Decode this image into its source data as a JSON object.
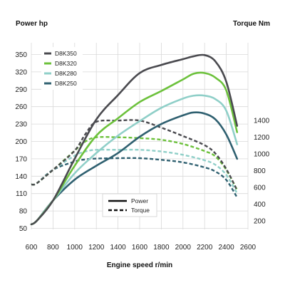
{
  "chart_data": {
    "type": "line",
    "xlabel": "Engine speed r/min",
    "ylabel_left": "Power hp",
    "ylabel_right": "Torque Nm",
    "xlim": [
      600,
      2600
    ],
    "x_ticks": [
      600,
      800,
      1000,
      1200,
      1400,
      1600,
      1800,
      2000,
      2200,
      2400,
      2600
    ],
    "ylim_left": [
      30,
      370
    ],
    "y_ticks_left": [
      50,
      80,
      110,
      140,
      170,
      200,
      230,
      260,
      290,
      320,
      350
    ],
    "y_ticks_right": [
      200,
      400,
      600,
      800,
      1000,
      1200,
      1400
    ],
    "grid": true,
    "legend_models": {
      "position": "top-left",
      "items": [
        {
          "name": "D8K350",
          "color": "#4a4a4f"
        },
        {
          "name": "D8K320",
          "color": "#6cc13b"
        },
        {
          "name": "D8K280",
          "color": "#8fcfc8"
        },
        {
          "name": "D8K250",
          "color": "#2f6070"
        }
      ]
    },
    "legend_styles": {
      "position": "bottom-center",
      "items": [
        {
          "name": "Power",
          "dash": "solid"
        },
        {
          "name": "Torque",
          "dash": "dashed"
        }
      ]
    },
    "series": [
      {
        "name": "D8K350",
        "kind": "power",
        "color": "#4a4a4f",
        "x": [
          600,
          650,
          800,
          1000,
          1200,
          1400,
          1600,
          1800,
          2000,
          2100,
          2200,
          2300,
          2400,
          2500
        ],
        "y": [
          57,
          63,
          98,
          170,
          238,
          280,
          318,
          332,
          342,
          347,
          349,
          338,
          303,
          227
        ]
      },
      {
        "name": "D8K320",
        "kind": "power",
        "color": "#6cc13b",
        "x": [
          600,
          650,
          800,
          1000,
          1200,
          1400,
          1600,
          1800,
          2000,
          2100,
          2200,
          2300,
          2400,
          2500
        ],
        "y": [
          57,
          63,
          98,
          158,
          210,
          240,
          268,
          287,
          307,
          317,
          318,
          310,
          288,
          216
        ]
      },
      {
        "name": "D8K280",
        "kind": "power",
        "color": "#8fcfc8",
        "x": [
          600,
          650,
          800,
          1000,
          1200,
          1400,
          1600,
          1800,
          2000,
          2100,
          2200,
          2300,
          2400,
          2500
        ],
        "y": [
          57,
          63,
          98,
          145,
          180,
          210,
          235,
          258,
          274,
          279,
          279,
          273,
          253,
          195
        ]
      },
      {
        "name": "D8K250",
        "kind": "power",
        "color": "#2f6070",
        "x": [
          600,
          650,
          800,
          1000,
          1200,
          1400,
          1600,
          1800,
          2000,
          2100,
          2200,
          2300,
          2400,
          2500
        ],
        "y": [
          57,
          63,
          98,
          134,
          158,
          180,
          208,
          230,
          245,
          250,
          248,
          238,
          212,
          170
        ]
      },
      {
        "name": "D8K350",
        "kind": "torque",
        "color": "#4a4a4f",
        "x": [
          600,
          650,
          800,
          1000,
          1100,
          1200,
          1400,
          1600,
          1800,
          2000,
          2200,
          2300,
          2400,
          2500
        ],
        "y": [
          635,
          650,
          810,
          1040,
          1240,
          1385,
          1400,
          1400,
          1315,
          1215,
          1105,
          1005,
          820,
          565
        ]
      },
      {
        "name": "D8K320",
        "kind": "torque",
        "color": "#6cc13b",
        "x": [
          600,
          650,
          800,
          1000,
          1100,
          1200,
          1400,
          1600,
          1800,
          2000,
          2200,
          2300,
          2400,
          2500
        ],
        "y": [
          635,
          650,
          810,
          1040,
          1150,
          1200,
          1200,
          1190,
          1170,
          1120,
          1035,
          970,
          810,
          570
        ]
      },
      {
        "name": "D8K280",
        "kind": "torque",
        "color": "#8fcfc8",
        "x": [
          600,
          650,
          800,
          1000,
          1100,
          1200,
          1400,
          1600,
          1800,
          2000,
          2200,
          2300,
          2400,
          2500
        ],
        "y": [
          635,
          650,
          810,
          980,
          1030,
          1050,
          1050,
          1050,
          1030,
          990,
          925,
          870,
          750,
          530
        ]
      },
      {
        "name": "D8K250",
        "kind": "torque",
        "color": "#2f6070",
        "x": [
          600,
          650,
          800,
          1000,
          1100,
          1200,
          1400,
          1600,
          1800,
          2000,
          2200,
          2300,
          2400,
          2500
        ],
        "y": [
          635,
          650,
          810,
          910,
          935,
          945,
          950,
          950,
          930,
          900,
          840,
          790,
          690,
          480
        ]
      }
    ]
  }
}
